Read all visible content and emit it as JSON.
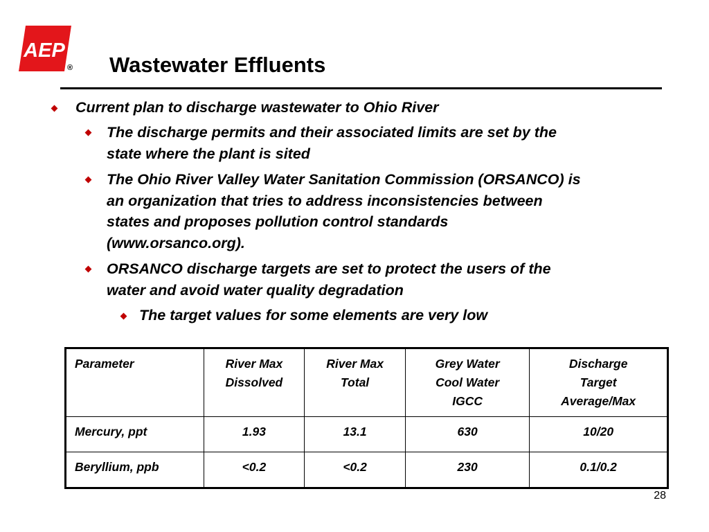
{
  "logo": {
    "text": "AEP",
    "registered": "®"
  },
  "title": "Wastewater Effluents",
  "bullets": [
    {
      "level": 1,
      "text": "Current plan to discharge wastewater to Ohio River"
    },
    {
      "level": 2,
      "lines": [
        "The discharge permits and their associated limits are set by the",
        "state where the plant is sited"
      ]
    },
    {
      "level": 2,
      "lines": [
        "The Ohio River Valley Water Sanitation Commission (ORSANCO) is",
        "an organization that tries to address inconsistencies between",
        "states and proposes pollution control standards",
        "(www.orsanco.org)."
      ]
    },
    {
      "level": 2,
      "lines": [
        "ORSANCO discharge targets are set to protect the users of the",
        "water and avoid water quality degradation"
      ]
    },
    {
      "level": 3,
      "text": "The target values for some elements are very low"
    }
  ],
  "table": {
    "headers": [
      [
        "Parameter"
      ],
      [
        "River Max",
        "Dissolved"
      ],
      [
        "River Max",
        "Total"
      ],
      [
        "Grey Water",
        "Cool Water",
        "IGCC"
      ],
      [
        "Discharge",
        "Target",
        "Average/Max"
      ]
    ],
    "rows": [
      [
        "Mercury, ppt",
        "1.93",
        "13.1",
        "630",
        "10/20"
      ],
      [
        "Beryllium, ppb",
        "<0.2",
        "<0.2",
        "230",
        "0.1/0.2"
      ]
    ]
  },
  "page_number": "28",
  "colors": {
    "logo_red": "#e3161b",
    "bullet": "#c00000"
  }
}
